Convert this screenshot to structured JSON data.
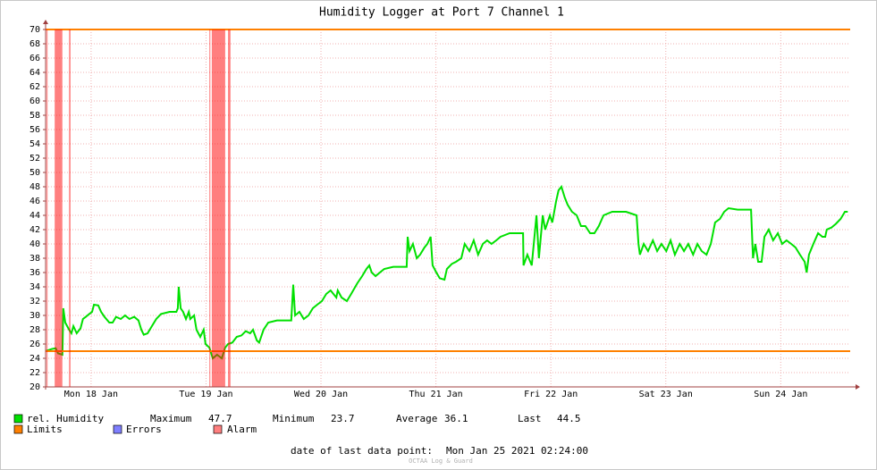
{
  "chart_data": {
    "type": "line",
    "title": "Humidity Logger at Port 7 Channel 1",
    "xlim": [
      2.5,
      170.5
    ],
    "xticks": [
      {
        "value": 12,
        "label": "Mon 18 Jan"
      },
      {
        "value": 36,
        "label": "Tue 19 Jan"
      },
      {
        "value": 60,
        "label": "Wed 20 Jan"
      },
      {
        "value": 84,
        "label": "Thu 21 Jan"
      },
      {
        "value": 108,
        "label": "Fri 22 Jan"
      },
      {
        "value": 132,
        "label": "Sat 23 Jan"
      },
      {
        "value": 156,
        "label": "Sun 24 Jan"
      }
    ],
    "ylim": [
      20,
      70
    ],
    "yticks": [
      20,
      22,
      24,
      26,
      28,
      30,
      32,
      34,
      36,
      38,
      40,
      42,
      44,
      46,
      48,
      50,
      52,
      54,
      56,
      58,
      60,
      62,
      64,
      66,
      68,
      70
    ],
    "grid": true,
    "x": [
      2.5,
      3.8,
      4.6,
      5.1,
      6.0,
      6.2,
      6.6,
      7.4,
      7.9,
      8.3,
      9.0,
      9.8,
      10.3,
      10.9,
      11.6,
      12.2,
      12.6,
      13.5,
      14.1,
      14.8,
      15.8,
      16.5,
      17.2,
      18.2,
      19.1,
      20.0,
      21.0,
      21.9,
      22.5,
      23.0,
      23.8,
      24.7,
      25.6,
      26.6,
      28.4,
      29.8,
      30.1,
      30.3,
      30.7,
      31.2,
      31.8,
      32.4,
      32.7,
      33.5,
      34.0,
      34.8,
      35.5,
      35.9,
      36.7,
      37.4,
      38.3,
      39.3,
      40.0,
      40.6,
      41.5,
      42.4,
      43.4,
      44.3,
      45.2,
      45.8,
      46.6,
      47.1,
      48.0,
      49.0,
      50.8,
      53.8,
      54.2,
      54.6,
      55.5,
      56.4,
      57.4,
      58.3,
      59.2,
      60.2,
      61.1,
      62.0,
      62.6,
      63.2,
      63.5,
      64.3,
      65.4,
      66.3,
      67.6,
      68.6,
      69.5,
      70.1,
      70.6,
      71.4,
      72.3,
      73.2,
      75.1,
      77.9,
      78.1,
      78.5,
      79.2,
      80.0,
      80.7,
      81.6,
      82.2,
      82.9,
      83.3,
      84.1,
      84.8,
      85.8,
      86.3,
      87.3,
      88.2,
      89.3,
      90.0,
      91.0,
      91.9,
      92.8,
      93.8,
      94.7,
      95.6,
      96.6,
      97.5,
      99.4,
      102.2,
      102.3,
      103.1,
      104.0,
      105.0,
      105.5,
      106.3,
      106.8,
      107.8,
      108.3,
      109.1,
      109.6,
      110.2,
      110.9,
      111.5,
      112.4,
      113.4,
      114.3,
      115.2,
      116.2,
      117.1,
      118.0,
      119.0,
      120.8,
      123.7,
      125.9,
      126.3,
      126.6,
      127.4,
      128.3,
      129.3,
      130.2,
      131.1,
      132.1,
      133.0,
      133.9,
      134.9,
      135.8,
      136.7,
      137.7,
      138.6,
      139.5,
      140.5,
      141.4,
      142.3,
      143.3,
      144.2,
      145.1,
      147.0,
      149.8,
      150.2,
      150.7,
      151.3,
      152.0,
      152.6,
      153.5,
      154.4,
      155.4,
      156.3,
      157.2,
      158.2,
      159.1,
      160.0,
      161.0,
      161.4,
      161.9,
      162.8,
      163.8,
      164.7,
      165.3,
      165.6,
      166.6,
      167.5,
      168.5,
      169.4,
      170.0
    ],
    "series": [
      {
        "name": "rel. Humidity",
        "color": "#00e000",
        "values": [
          25,
          25.3,
          25.4,
          24.7,
          24.5,
          31,
          29,
          28,
          27.5,
          28.5,
          27.5,
          28.2,
          29.5,
          29.8,
          30.2,
          30.5,
          31.5,
          31.4,
          30.5,
          29.8,
          29,
          29,
          29.8,
          29.5,
          30,
          29.5,
          29.8,
          29.3,
          28,
          27.3,
          27.5,
          28.5,
          29.5,
          30.2,
          30.5,
          30.5,
          31,
          34,
          31,
          30.5,
          29.5,
          30.5,
          29.5,
          30,
          28,
          27,
          28,
          26,
          25.5,
          24,
          24.5,
          24,
          25.5,
          26,
          26.2,
          27,
          27.2,
          27.8,
          27.5,
          28,
          26.5,
          26.2,
          28,
          29,
          29.3,
          29.3,
          34.3,
          30,
          30.5,
          29.5,
          30,
          31,
          31.5,
          32,
          33,
          33.5,
          33,
          32.5,
          33.5,
          32.5,
          32,
          33,
          34.5,
          35.5,
          36.5,
          37,
          36,
          35.5,
          36,
          36.5,
          36.8,
          36.8,
          41,
          39,
          40,
          38,
          38.5,
          39.5,
          40,
          41,
          37,
          36,
          35.2,
          35,
          36.5,
          37.2,
          37.5,
          38,
          40,
          39,
          40.5,
          38.5,
          40,
          40.5,
          40,
          40.5,
          41,
          41.5,
          41.5,
          37,
          38.5,
          37,
          44,
          38,
          44,
          42,
          44,
          43,
          46,
          47.5,
          48,
          46.5,
          45.5,
          44.5,
          44,
          42.5,
          42.5,
          41.5,
          41.5,
          42.5,
          44,
          44.5,
          44.5,
          44,
          40,
          38.5,
          40,
          39,
          40.5,
          39,
          40,
          39,
          40.5,
          38.5,
          40,
          39,
          40,
          38.5,
          40,
          39,
          38.5,
          40,
          43,
          43.5,
          44.5,
          45,
          44.8,
          44.8,
          38,
          40,
          37.5,
          37.5,
          41,
          42,
          40.5,
          41.5,
          40,
          40.5,
          40,
          39.5,
          38.5,
          37.5,
          36,
          38.5,
          40,
          41.5,
          41,
          41,
          42,
          42.3,
          42.8,
          43.5,
          44.5,
          44.5
        ]
      }
    ],
    "limits": {
      "name": "Limits",
      "color": "#ff8000",
      "values": [
        25,
        70
      ]
    },
    "errors": {
      "name": "Errors",
      "color": "#7f7fff"
    },
    "alarms": {
      "name": "Alarm",
      "color": "#ff7f7f",
      "intervals": [
        [
          2.7,
          2.9
        ],
        [
          4.4,
          6.0
        ],
        [
          7.4,
          7.7
        ],
        [
          36.7,
          36.9
        ],
        [
          37.2,
          40.0
        ],
        [
          40.6,
          41.1
        ]
      ]
    },
    "stats": [
      {
        "label": "Maximum",
        "value": 47.7
      },
      {
        "label": "Minimum",
        "value": 23.7
      },
      {
        "label": "Average",
        "value": 36.1
      },
      {
        "label": "Last",
        "value": 44.5
      }
    ],
    "last_point_label": "date of last data point:",
    "last_point": "Mon Jan 25 2021 02:24:00",
    "watermark": "OCTAA Log & Guard"
  }
}
